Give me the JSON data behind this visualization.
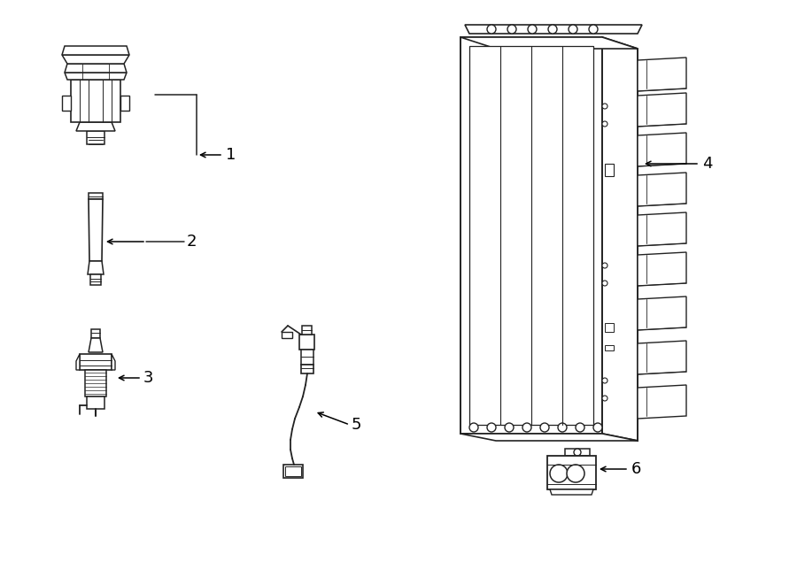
{
  "bg_color": "#ffffff",
  "line_color": "#222222",
  "label_color": "#000000",
  "arrow_color": "#000000",
  "figsize": [
    9.0,
    6.61
  ],
  "dpi": 100
}
